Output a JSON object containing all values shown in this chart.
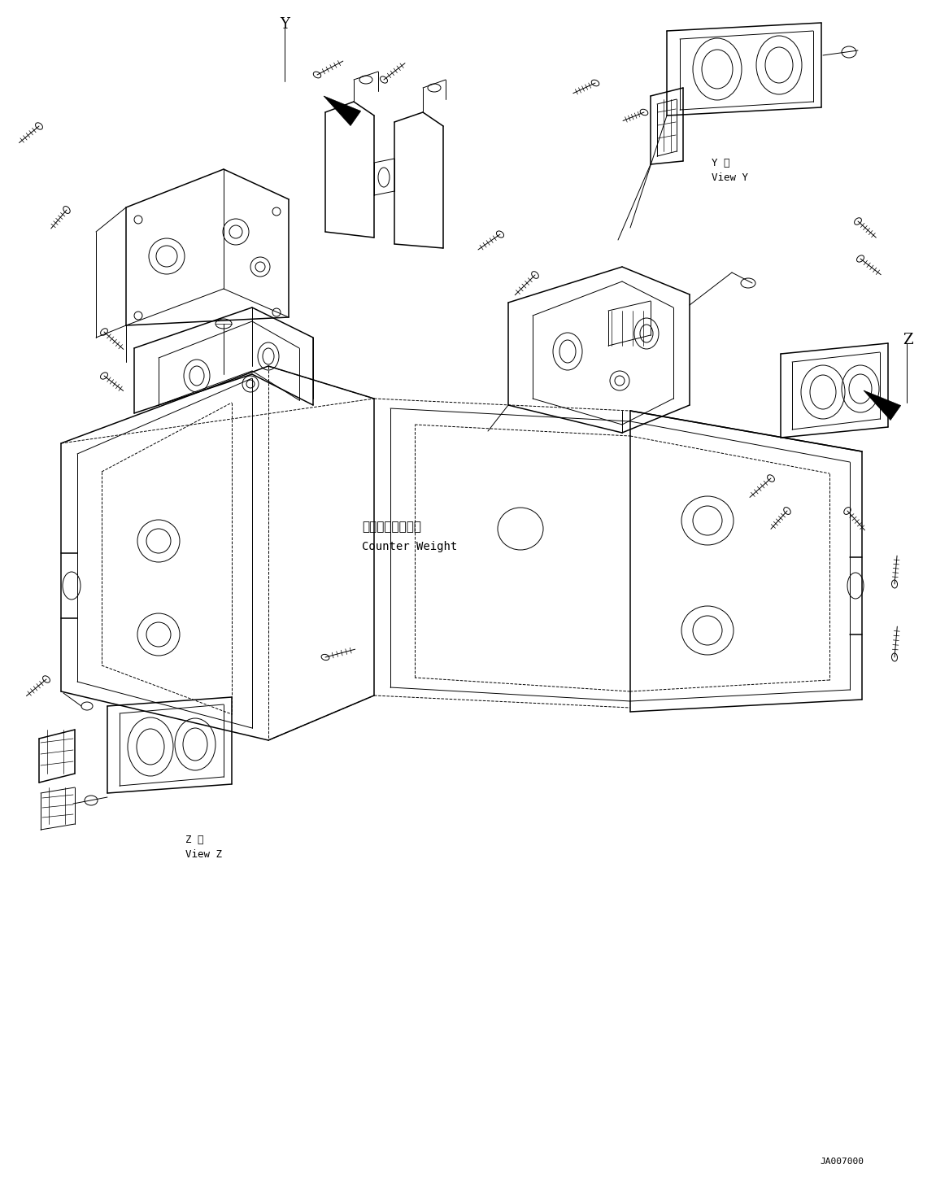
{
  "bg_color": "#ffffff",
  "line_color": "#000000",
  "figsize": [
    11.51,
    14.58
  ],
  "dpi": 100,
  "label_counter_weight_jp": "カウンタウエイト",
  "label_counter_weight_en": "Counter Weight",
  "label_ja007000": "JA007000",
  "label_y_view_kanji": "Y 視",
  "label_y_view": "View Y",
  "label_z_view_kanji": "Z 視",
  "label_z_view": "View Z",
  "label_y": "Y",
  "label_z": "Z"
}
